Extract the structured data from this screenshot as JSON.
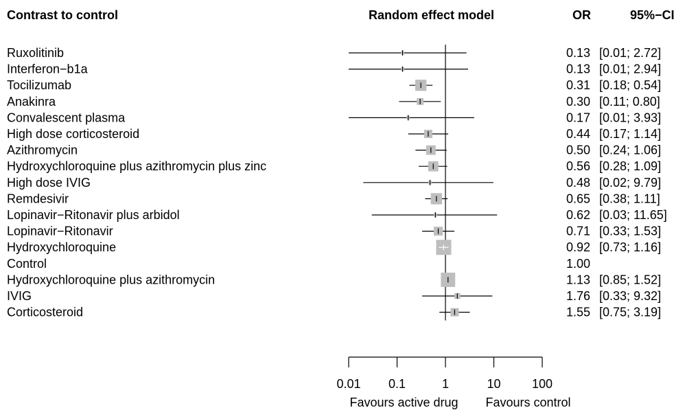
{
  "headers": {
    "contrast": "Contrast to control",
    "model": "Random effect model",
    "or": "OR",
    "ci": "95%−CI"
  },
  "chart_data": {
    "type": "forest",
    "x_scale": "log10",
    "xlim": [
      0.01,
      100
    ],
    "null_value": 1,
    "x_ticks": [
      {
        "value": 0.01,
        "label": "0.01"
      },
      {
        "value": 0.1,
        "label": "0.1"
      },
      {
        "value": 1,
        "label": "1"
      },
      {
        "value": 10,
        "label": "10"
      },
      {
        "value": 100,
        "label": "100"
      }
    ],
    "x_left_label": "Favours active drug",
    "x_right_label": "Favours control",
    "rows": [
      {
        "name": "Ruxolitinib",
        "or": 0.13,
        "lo": 0.01,
        "hi": 2.72,
        "or_text": "0.13",
        "ci_text": "[0.01;  2.72]",
        "weight": 0.05
      },
      {
        "name": "Interferon−b1a",
        "or": 0.13,
        "lo": 0.01,
        "hi": 2.94,
        "or_text": "0.13",
        "ci_text": "[0.01;  2.94]",
        "weight": 0.05
      },
      {
        "name": "Tocilizumab",
        "or": 0.31,
        "lo": 0.18,
        "hi": 0.54,
        "or_text": "0.31",
        "ci_text": "[0.18;  0.54]",
        "weight": 0.55
      },
      {
        "name": "Anakinra",
        "or": 0.3,
        "lo": 0.11,
        "hi": 0.8,
        "or_text": "0.30",
        "ci_text": "[0.11;  0.80]",
        "weight": 0.2
      },
      {
        "name": "Convalescent plasma",
        "or": 0.17,
        "lo": 0.01,
        "hi": 3.93,
        "or_text": "0.17",
        "ci_text": "[0.01;  3.93]",
        "weight": 0.05
      },
      {
        "name": "High dose corticosteroid",
        "or": 0.44,
        "lo": 0.17,
        "hi": 1.14,
        "or_text": "0.44",
        "ci_text": "[0.17;  1.14]",
        "weight": 0.3
      },
      {
        "name": "Azithromycin",
        "or": 0.5,
        "lo": 0.24,
        "hi": 1.06,
        "or_text": "0.50",
        "ci_text": "[0.24;  1.06]",
        "weight": 0.4
      },
      {
        "name": "Hydroxychloroquine plus azithromycin plus zinc",
        "or": 0.56,
        "lo": 0.28,
        "hi": 1.09,
        "or_text": "0.56",
        "ci_text": "[0.28;  1.09]",
        "weight": 0.45
      },
      {
        "name": "High dose IVIG",
        "or": 0.48,
        "lo": 0.02,
        "hi": 9.79,
        "or_text": "0.48",
        "ci_text": "[0.02;  9.79]",
        "weight": 0.05
      },
      {
        "name": "Remdesivir",
        "or": 0.65,
        "lo": 0.38,
        "hi": 1.11,
        "or_text": "0.65",
        "ci_text": "[0.38;  1.11]",
        "weight": 0.55
      },
      {
        "name": "Lopinavir−Ritonavir plus arbidol",
        "or": 0.62,
        "lo": 0.03,
        "hi": 11.65,
        "or_text": "0.62",
        "ci_text": "[0.03; 11.65]",
        "weight": 0.05
      },
      {
        "name": "Lopinavir−Ritonavir",
        "or": 0.71,
        "lo": 0.33,
        "hi": 1.53,
        "or_text": "0.71",
        "ci_text": "[0.33;  1.53]",
        "weight": 0.35
      },
      {
        "name": "Hydroxychloroquine",
        "or": 0.92,
        "lo": 0.73,
        "hi": 1.16,
        "or_text": "0.92",
        "ci_text": "[0.73;  1.16]",
        "weight": 1.0,
        "white_cross": true
      },
      {
        "name": "Control",
        "or": null,
        "lo": null,
        "hi": null,
        "or_text": "1.00",
        "ci_text": "",
        "weight": 0
      },
      {
        "name": "Hydroxychloroquine plus azithromycin",
        "or": 1.13,
        "lo": 0.85,
        "hi": 1.52,
        "or_text": "1.13",
        "ci_text": "[0.85;  1.52]",
        "weight": 0.9
      },
      {
        "name": "IVIG",
        "or": 1.76,
        "lo": 0.33,
        "hi": 9.32,
        "or_text": "1.76",
        "ci_text": "[0.33;  9.32]",
        "weight": 0.15
      },
      {
        "name": "Corticosteroid",
        "or": 1.55,
        "lo": 0.75,
        "hi": 3.19,
        "or_text": "1.55",
        "ci_text": "[0.75;  3.19]",
        "weight": 0.3
      }
    ],
    "colors": {
      "box": "#bebebe",
      "line": "#000000",
      "text": "#000000"
    }
  }
}
